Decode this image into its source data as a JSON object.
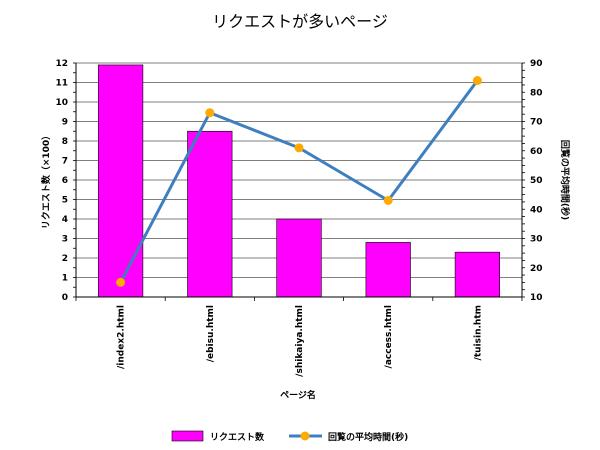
{
  "chart_data": {
    "type": "bar",
    "title": "リクエストが多いページ",
    "xlabel": "ページ名",
    "ylabel_left": "リクエスト数（×100）",
    "ylabel_right": "回覧の平均時間(秒)",
    "categories": [
      "/index2.html",
      "/ebisu.html",
      "/shikaiya.html",
      "/access.html",
      "/tuisin.htm"
    ],
    "series": [
      {
        "name": "リクエスト数",
        "type": "bar",
        "axis": "left",
        "color": "#ff00ff",
        "values": [
          11.9,
          8.5,
          4.0,
          2.8,
          2.3
        ]
      },
      {
        "name": "回覧の平均時間(秒)",
        "type": "line",
        "axis": "right",
        "color": "#3f7fbf",
        "marker_color": "#ffaa00",
        "values": [
          15,
          73,
          61,
          43,
          84
        ]
      }
    ],
    "ylim_left": [
      0,
      12
    ],
    "yticks_left": [
      0,
      1,
      2,
      3,
      4,
      5,
      6,
      7,
      8,
      9,
      10,
      11,
      12
    ],
    "ylim_right": [
      10,
      90
    ],
    "yticks_right": [
      10,
      20,
      30,
      40,
      50,
      60,
      70,
      80,
      90
    ],
    "grid": true,
    "legend_position": "bottom"
  }
}
